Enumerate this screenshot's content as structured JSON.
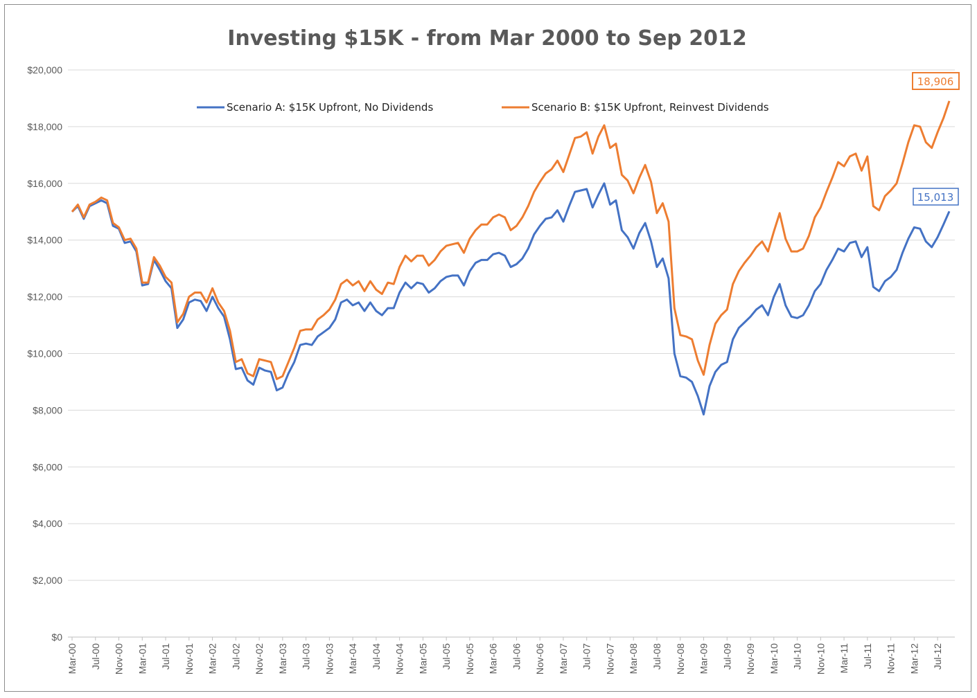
{
  "chart_data": {
    "type": "line",
    "title": "Investing $15K - from Mar 2000 to Sep 2012",
    "xlabel": "",
    "ylabel": "",
    "ylim": [
      0,
      20000
    ],
    "yticks": [
      0,
      2000,
      4000,
      6000,
      8000,
      10000,
      12000,
      14000,
      16000,
      18000,
      20000
    ],
    "ytick_labels": [
      "$0",
      "$2,000",
      "$4,000",
      "$6,000",
      "$8,000",
      "$10,000",
      "$12,000",
      "$14,000",
      "$16,000",
      "$18,000",
      "$20,000"
    ],
    "x_tick_labels": [
      "Mar-00",
      "Jul-00",
      "Nov-00",
      "Mar-01",
      "Jul-01",
      "Nov-01",
      "Mar-02",
      "Jul-02",
      "Nov-02",
      "Mar-03",
      "Jul-03",
      "Nov-03",
      "Mar-04",
      "Jul-04",
      "Nov-04",
      "Mar-05",
      "Jul-05",
      "Nov-05",
      "Mar-06",
      "Jul-06",
      "Nov-06",
      "Mar-07",
      "Jul-07",
      "Nov-07",
      "Mar-08",
      "Jul-08",
      "Nov-08",
      "Mar-09",
      "Jul-09",
      "Nov-09",
      "Mar-10",
      "Jul-10",
      "Nov-10",
      "Mar-11",
      "Jul-11",
      "Nov-11",
      "Mar-12",
      "Jul-12"
    ],
    "x_start": "Mar-00",
    "x_end": "Sep-12",
    "grid": true,
    "legend_position": "top",
    "series": [
      {
        "name": "Scenario A: $15K Upfront, No Dividends",
        "color": "#4472C4",
        "end_label": "15,013",
        "values": [
          15000,
          15200,
          14750,
          15200,
          15300,
          15400,
          15300,
          14500,
          14400,
          13900,
          13950,
          13600,
          12400,
          12450,
          13300,
          12950,
          12550,
          12300,
          10900,
          11200,
          11800,
          11900,
          11850,
          11500,
          12000,
          11600,
          11300,
          10500,
          9450,
          9500,
          9050,
          8900,
          9500,
          9400,
          9350,
          8700,
          8800,
          9300,
          9700,
          10300,
          10350,
          10300,
          10600,
          10750,
          10900,
          11200,
          11800,
          11900,
          11700,
          11800,
          11500,
          11800,
          11500,
          11350,
          11600,
          11600,
          12150,
          12500,
          12300,
          12500,
          12450,
          12150,
          12300,
          12550,
          12700,
          12750,
          12750,
          12400,
          12900,
          13200,
          13300,
          13300,
          13500,
          13550,
          13450,
          13050,
          13150,
          13350,
          13700,
          14200,
          14500,
          14750,
          14800,
          15050,
          14650,
          15200,
          15700,
          15750,
          15800,
          15150,
          15600,
          16000,
          15250,
          15400,
          14350,
          14100,
          13700,
          14250,
          14600,
          13950,
          13050,
          13350,
          12650,
          10000,
          9200,
          9150,
          9000,
          8500,
          7850,
          8850,
          9350,
          9600,
          9700,
          10500,
          10900,
          11100,
          11300,
          11550,
          11700,
          11350,
          12000,
          12450,
          11700,
          11300,
          11250,
          11350,
          11700,
          12200,
          12450,
          12950,
          13300,
          13700,
          13600,
          13900,
          13950,
          13400,
          13750,
          12350,
          12200,
          12550,
          12700,
          12950,
          13550,
          14050,
          14450,
          14400,
          13950,
          13750,
          14100,
          14550,
          15013
        ]
      },
      {
        "name": "Scenario B: $15K Upfront, Reinvest Dividends",
        "color": "#ED7D31",
        "end_label": "18,906",
        "values": [
          15000,
          15250,
          14800,
          15250,
          15350,
          15500,
          15400,
          14600,
          14450,
          14000,
          14050,
          13700,
          12500,
          12500,
          13400,
          13100,
          12700,
          12500,
          11100,
          11400,
          12000,
          12150,
          12150,
          11800,
          12300,
          11800,
          11500,
          10800,
          9700,
          9800,
          9300,
          9200,
          9800,
          9750,
          9700,
          9100,
          9200,
          9700,
          10200,
          10800,
          10850,
          10850,
          11200,
          11350,
          11550,
          11900,
          12450,
          12600,
          12400,
          12550,
          12200,
          12550,
          12250,
          12100,
          12500,
          12450,
          13050,
          13450,
          13250,
          13450,
          13450,
          13100,
          13300,
          13600,
          13800,
          13850,
          13900,
          13550,
          14050,
          14350,
          14550,
          14550,
          14800,
          14900,
          14800,
          14350,
          14500,
          14800,
          15200,
          15700,
          16050,
          16350,
          16500,
          16800,
          16400,
          17000,
          17600,
          17650,
          17800,
          17050,
          17650,
          18050,
          17250,
          17400,
          16300,
          16100,
          15650,
          16200,
          16650,
          16050,
          14950,
          15300,
          14650,
          11600,
          10650,
          10600,
          10500,
          9750,
          9250,
          10300,
          11050,
          11350,
          11550,
          12450,
          12900,
          13200,
          13450,
          13750,
          13950,
          13600,
          14300,
          14950,
          14050,
          13600,
          13600,
          13700,
          14150,
          14800,
          15150,
          15700,
          16200,
          16750,
          16600,
          16950,
          17050,
          16450,
          16950,
          15200,
          15050,
          15550,
          15750,
          16000,
          16700,
          17450,
          18050,
          18000,
          17450,
          17250,
          17800,
          18300,
          18906
        ]
      }
    ]
  }
}
